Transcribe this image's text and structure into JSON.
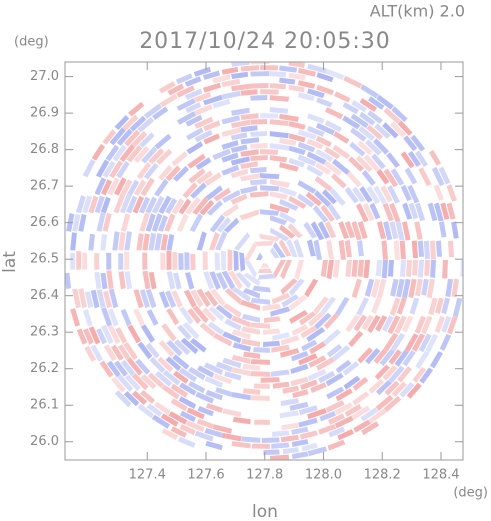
{
  "chart_data": {
    "type": "radar-map",
    "title": "2017/10/24 20:05:30",
    "annotation": "ALT(km)  2.0",
    "x_label": "lon",
    "y_label": "lat",
    "x_unit": "(deg)",
    "y_unit": "(deg)",
    "xlim": [
      127.12,
      128.475
    ],
    "ylim": [
      25.95,
      27.04
    ],
    "xticks": [
      127.4,
      127.6,
      127.8,
      {
        "value": 128.0,
        "label": "128.0"
      },
      128.2,
      128.4
    ],
    "yticks": [
      {
        "value": 26.0,
        "label": "26.0"
      },
      26.1,
      26.2,
      26.3,
      26.4,
      26.5,
      26.6,
      26.7,
      26.8,
      26.9,
      {
        "value": 27.0,
        "label": "27.0"
      }
    ],
    "colors": [
      "#f4a6a6",
      "#aab4f4"
    ]
  }
}
